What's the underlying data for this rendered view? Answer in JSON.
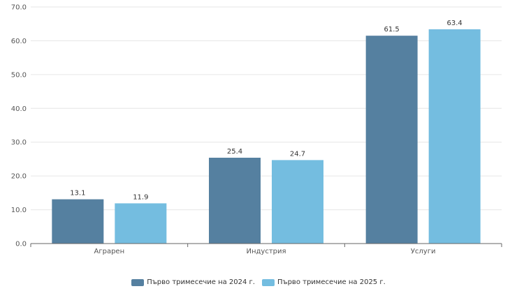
{
  "chart_data": {
    "type": "bar",
    "title": "",
    "xlabel": "",
    "ylabel": "",
    "categories": [
      "Аграрен",
      "Индустрия",
      "Услуги"
    ],
    "series": [
      {
        "name": "Първо тримесечие на 2024 г.",
        "values": [
          13.1,
          25.4,
          61.5
        ],
        "color": "#5580a0",
        "labels": [
          "13.1",
          "25.4",
          "61.5"
        ]
      },
      {
        "name": "Първо тримесечие на 2025 г.",
        "values": [
          11.9,
          24.7,
          63.4
        ],
        "color": "#74bde0",
        "labels": [
          "11.9",
          "24.7",
          "63.4"
        ]
      }
    ],
    "ylim": [
      0,
      70
    ],
    "yticks": [
      "0.0",
      "10.0",
      "20.0",
      "30.0",
      "40.0",
      "50.0",
      "60.0",
      "70.0"
    ],
    "grid": true,
    "legend_position": "bottom-center"
  }
}
